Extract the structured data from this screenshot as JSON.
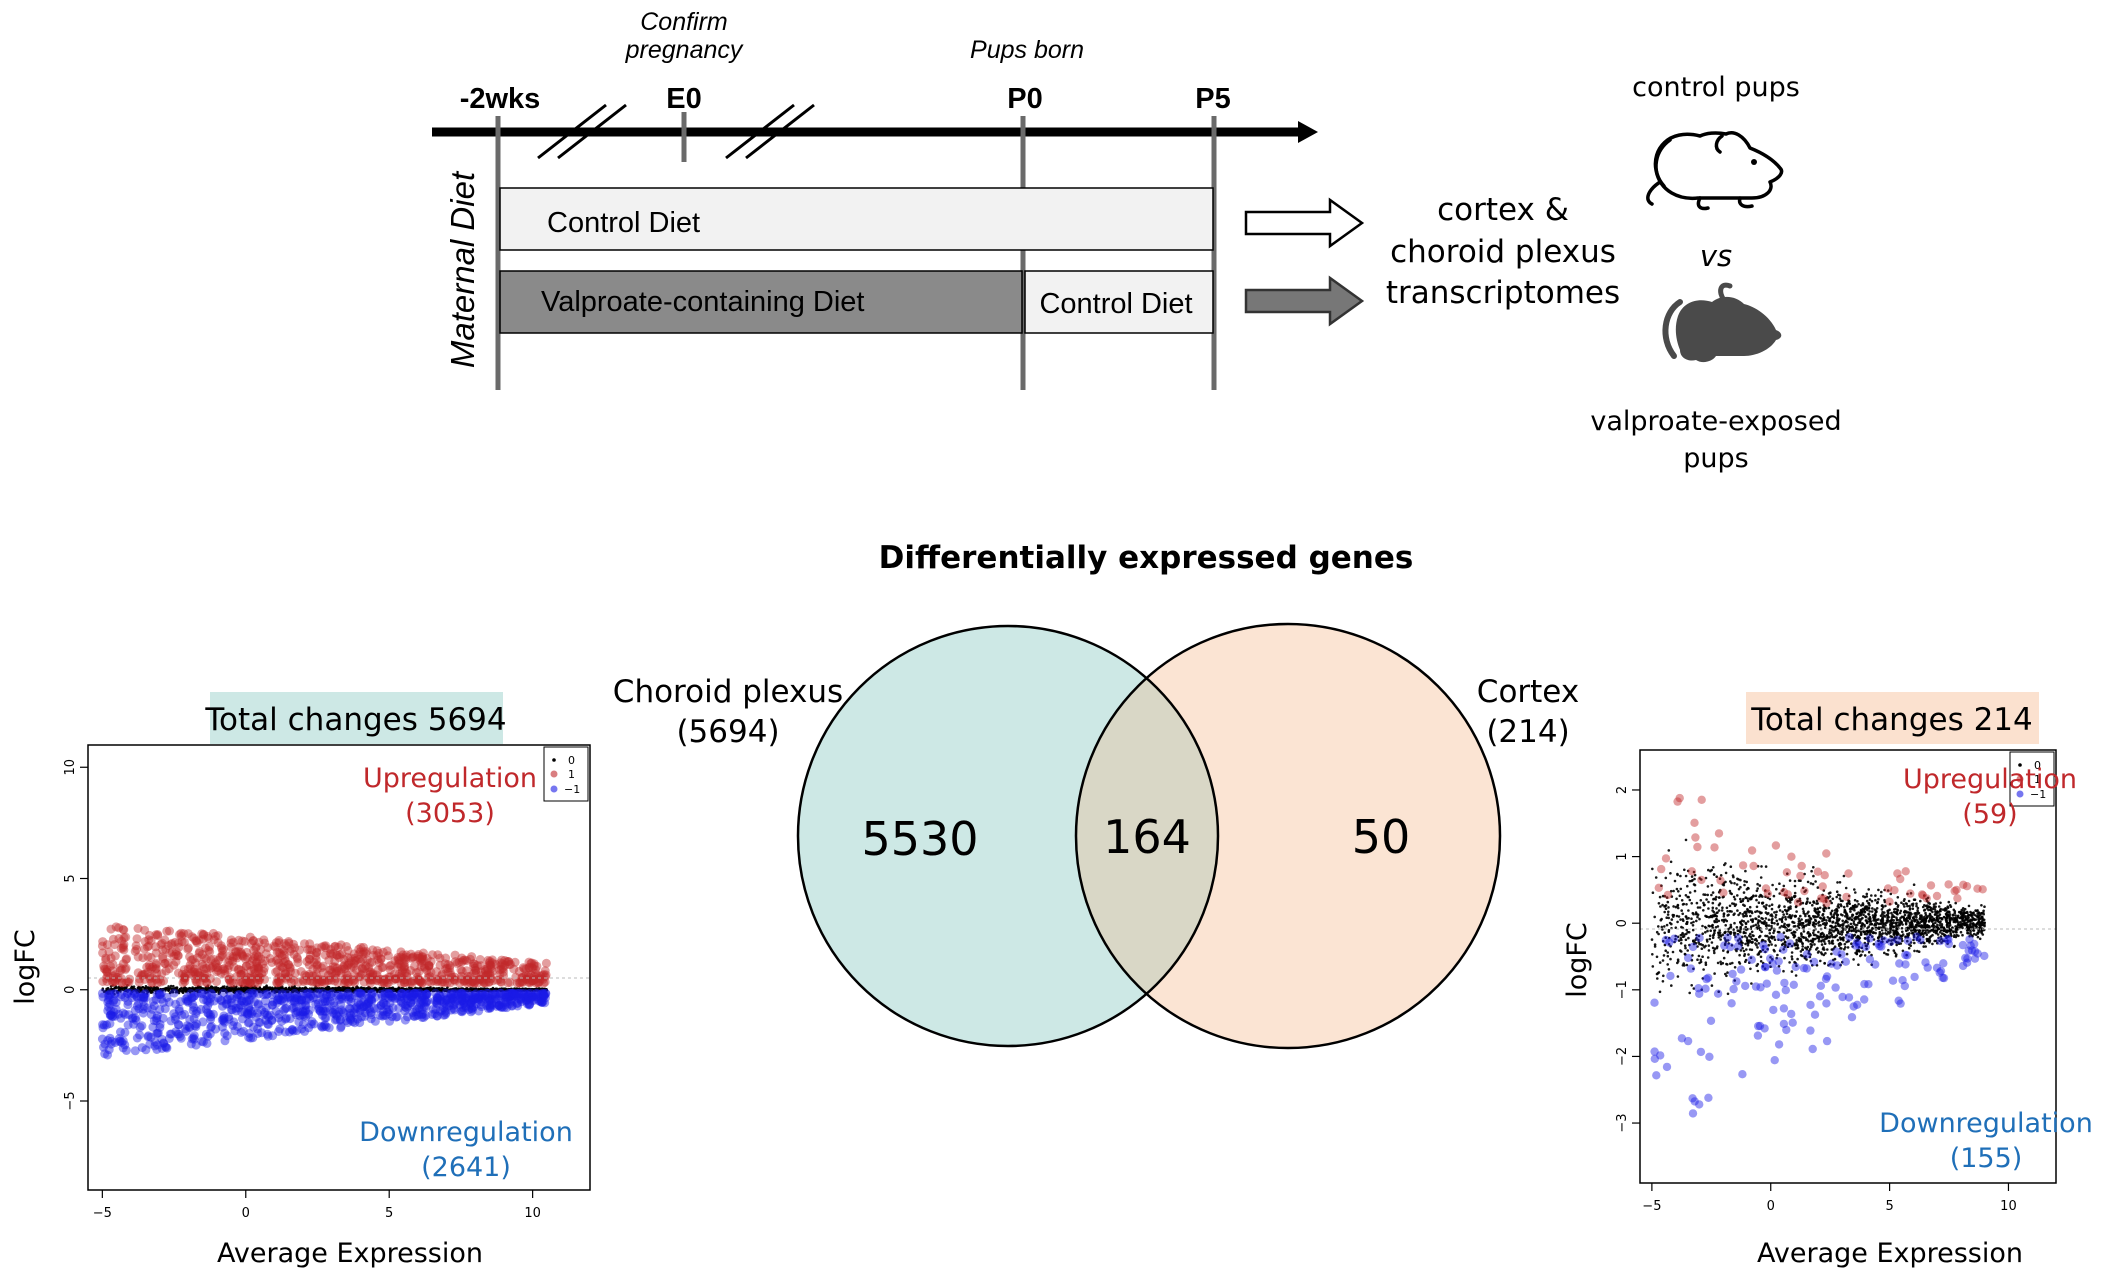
{
  "timeline": {
    "marks": {
      "minus2wks": "-2wks",
      "e0": "E0",
      "p0": "P0",
      "p5": "P5"
    },
    "annotations": {
      "confirm_line1": "Confirm",
      "confirm_line2": "pregnancy",
      "pups_born": "Pups born"
    },
    "row_label": "Maternal Diet",
    "control_bar": "Control Diet",
    "valproate_bar": "Valproate-containing Diet",
    "control_bar_after": "Control Diet",
    "outcome_lines": [
      "cortex &",
      "choroid plexus",
      "transcriptomes"
    ],
    "control_pups": "control pups",
    "vs": "vs",
    "valproate_pups_lines": [
      "valproate-exposed",
      "pups"
    ],
    "colors": {
      "control_fill": "#f2f2f2",
      "valproate_fill": "#8a8a8a",
      "axis": "#000000",
      "tick": "#6a6a6a"
    }
  },
  "venn": {
    "title": "Differentially expressed genes",
    "left_label_lines": [
      "Choroid plexus",
      "(5694)"
    ],
    "right_label_lines": [
      "Cortex",
      "(214)"
    ],
    "left_only": "5530",
    "overlap": "164",
    "right_only": "50",
    "colors": {
      "left": "#cde8e5",
      "right": "#fbe4d3",
      "overlap": "#d9d7c6"
    }
  },
  "chart_data": [
    {
      "type": "scatter",
      "title": "Total changes 5694",
      "title_bg": "#cde8e5",
      "xlabel": "Average Expression",
      "ylabel": "logFC",
      "xlim": [
        -5.5,
        12
      ],
      "ylim": [
        -9,
        11
      ],
      "xticks": [
        -5,
        0,
        5,
        10
      ],
      "yticks": [
        -5,
        0,
        5,
        10
      ],
      "legend": {
        "position": "top-right",
        "entries": [
          "0",
          "1",
          "−1"
        ]
      },
      "series_colors": {
        "0": "#000000",
        "1": "#c0282b",
        "-1": "#1a1ae6"
      },
      "up_label_lines": [
        "Upregulation",
        "(3053)"
      ],
      "down_label_lines": [
        "Downregulation",
        "(2641)"
      ],
      "distribution": {
        "x_range": [
          -5,
          10.5
        ],
        "up": {
          "count": 3053,
          "y_min": 0.3,
          "y_max_start": 3,
          "y_max_end": 1.2
        },
        "down": {
          "count": 2641,
          "y_min_start": -3,
          "y_min_end": -0.6,
          "y_max": -0.15
        },
        "ns": {
          "count": 2000,
          "y_spread": 0.3
        }
      }
    },
    {
      "type": "scatter",
      "title": "Total changes 214",
      "title_bg": "#fbe1cf",
      "xlabel": "Average Expression",
      "ylabel": "logFC",
      "xlim": [
        -5.5,
        12
      ],
      "ylim": [
        -3.9,
        2.6
      ],
      "xticks": [
        -5,
        0,
        5,
        10
      ],
      "yticks": [
        -3,
        -2,
        -1,
        0,
        1,
        2
      ],
      "legend": {
        "position": "top-right",
        "entries": [
          "0",
          "1",
          "−1"
        ]
      },
      "series_colors": {
        "0": "#000000",
        "1": "#c0282b",
        "-1": "#1a1ae6"
      },
      "up_label_lines": [
        "Upregulation",
        "(59)"
      ],
      "down_label_lines": [
        "Downregulation",
        "(155)"
      ],
      "distribution": {
        "x_range": [
          -5,
          9
        ],
        "up": {
          "count": 59,
          "y_min": 0.3,
          "y_max_start": 2.2,
          "y_max_end": 0.5
        },
        "down": {
          "count": 155,
          "y_min_start": -3.3,
          "y_min_end": -0.5,
          "y_max": -0.2
        },
        "ns": {
          "count": 4500,
          "y_spread": 1.6
        }
      }
    }
  ]
}
